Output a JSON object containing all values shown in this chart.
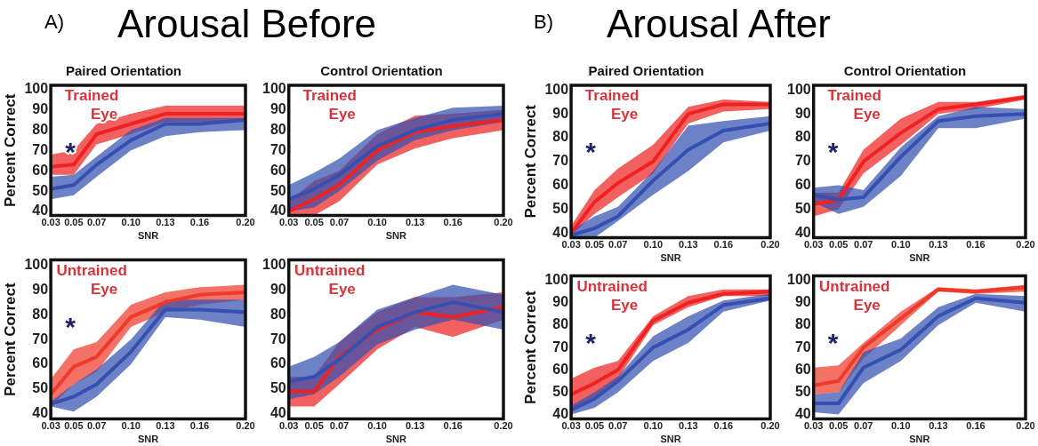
{
  "chart_data": [
    {
      "type": "line",
      "title": "Paired Orientation",
      "xlabel": "SNR",
      "ylabel": "Percent Correct",
      "annotations": [
        "A)",
        "Arousal Before",
        "Trained Eye",
        "*"
      ],
      "x": [
        0.03,
        0.05,
        0.07,
        0.1,
        0.13,
        0.16,
        0.2
      ],
      "xlim": [
        0.03,
        0.2
      ],
      "xticks": [
        {
          "value": 0.03,
          "label": "0.03"
        },
        {
          "value": 0.05,
          "label": "0.05"
        },
        {
          "value": 0.07,
          "label": "0.07"
        },
        {
          "value": 0.1,
          "label": "0.10"
        },
        {
          "value": 0.13,
          "label": "0.13"
        },
        {
          "value": 0.16,
          "label": "0.16"
        },
        {
          "value": 0.2,
          "label": "0.20"
        }
      ],
      "ylim": [
        38,
        102
      ],
      "yticks": [
        40,
        50,
        60,
        70,
        80,
        90,
        100
      ],
      "series": [
        {
          "color": "#3550b0",
          "values": [
            51,
            53,
            63,
            75,
            83,
            83,
            85
          ],
          "lower": [
            46,
            48,
            57,
            70,
            77,
            79,
            80
          ],
          "upper": [
            57,
            58,
            67,
            80,
            86,
            86,
            86
          ]
        },
        {
          "color": "#ee2222",
          "values": [
            62,
            63,
            78,
            83,
            88,
            88,
            88
          ],
          "lower": [
            58,
            58,
            73,
            78,
            84,
            84,
            84
          ],
          "upper": [
            68,
            70,
            83,
            88,
            92,
            92,
            92
          ]
        }
      ]
    },
    {
      "type": "line",
      "title": "Control Orientation",
      "xlabel": "SNR",
      "annotations": [
        "Trained Eye"
      ],
      "x": [
        0.03,
        0.05,
        0.07,
        0.1,
        0.13,
        0.16,
        0.2
      ],
      "xlim": [
        0.03,
        0.2
      ],
      "xticks": [
        {
          "value": 0.03,
          "label": "0.03"
        },
        {
          "value": 0.05,
          "label": "0.05"
        },
        {
          "value": 0.07,
          "label": "0.07"
        },
        {
          "value": 0.1,
          "label": "0.10"
        },
        {
          "value": 0.13,
          "label": "0.13"
        },
        {
          "value": 0.16,
          "label": "0.16"
        },
        {
          "value": 0.2,
          "label": "0.20"
        }
      ],
      "ylim": [
        38,
        102
      ],
      "yticks": [
        40,
        50,
        60,
        70,
        80,
        90,
        100
      ],
      "series": [
        {
          "color": "#3550b0",
          "values": [
            46,
            51,
            58,
            72,
            80,
            85,
            88
          ],
          "lower": [
            40,
            42,
            50,
            65,
            75,
            80,
            84
          ],
          "upper": [
            53,
            59,
            66,
            80,
            86,
            91,
            92
          ]
        },
        {
          "color": "#ee2222",
          "values": [
            40,
            46,
            53,
            70,
            79,
            82,
            85
          ],
          "lower": [
            38,
            38,
            45,
            63,
            71,
            76,
            80
          ],
          "upper": [
            45,
            55,
            60,
            78,
            87,
            88,
            90
          ]
        }
      ]
    },
    {
      "type": "line",
      "xlabel": "SNR",
      "ylabel": "Percent Correct",
      "annotations": [
        "Untrained Eye",
        "*"
      ],
      "x": [
        0.03,
        0.05,
        0.07,
        0.1,
        0.13,
        0.16,
        0.2
      ],
      "xlim": [
        0.03,
        0.2
      ],
      "xticks": [
        {
          "value": 0.03,
          "label": "0.03"
        },
        {
          "value": 0.05,
          "label": "0.05"
        },
        {
          "value": 0.07,
          "label": "0.07"
        },
        {
          "value": 0.1,
          "label": "0.10"
        },
        {
          "value": 0.13,
          "label": "0.13"
        },
        {
          "value": 0.16,
          "label": "0.16"
        },
        {
          "value": 0.2,
          "label": "0.20"
        }
      ],
      "ylim": [
        38,
        102
      ],
      "yticks": [
        40,
        50,
        60,
        70,
        80,
        90,
        100
      ],
      "series": [
        {
          "color": "#3550b0",
          "values": [
            44,
            47,
            52,
            65,
            82,
            82,
            81
          ],
          "lower": [
            43,
            41,
            47,
            60,
            79,
            78,
            75
          ],
          "upper": [
            45,
            52,
            58,
            70,
            86,
            86,
            86
          ]
        },
        {
          "color": "#ee3a2a",
          "values": [
            48,
            59,
            63,
            79,
            85,
            88,
            89
          ],
          "lower": [
            43,
            52,
            57,
            75,
            81,
            84,
            86
          ],
          "upper": [
            54,
            66,
            69,
            84,
            89,
            91,
            92
          ]
        }
      ]
    },
    {
      "type": "line",
      "xlabel": "SNR",
      "annotations": [
        "Untrained Eye"
      ],
      "x": [
        0.03,
        0.05,
        0.07,
        0.1,
        0.13,
        0.16,
        0.2
      ],
      "xlim": [
        0.03,
        0.2
      ],
      "xticks": [
        {
          "value": 0.03,
          "label": "0.03"
        },
        {
          "value": 0.05,
          "label": "0.05"
        },
        {
          "value": 0.07,
          "label": "0.07"
        },
        {
          "value": 0.1,
          "label": "0.10"
        },
        {
          "value": 0.13,
          "label": "0.13"
        },
        {
          "value": 0.16,
          "label": "0.16"
        },
        {
          "value": 0.2,
          "label": "0.20"
        }
      ],
      "ylim": [
        38,
        102
      ],
      "yticks": [
        40,
        50,
        60,
        70,
        80,
        90,
        100
      ],
      "series": [
        {
          "color": "#3550b0",
          "values": [
            53,
            55,
            62,
            75,
            81,
            85,
            81
          ],
          "lower": [
            46,
            48,
            55,
            68,
            74,
            78,
            74
          ],
          "upper": [
            59,
            63,
            69,
            82,
            87,
            92,
            88
          ]
        },
        {
          "color": "#ee2222",
          "values": [
            49,
            49,
            63,
            74,
            81,
            79,
            83
          ],
          "lower": [
            43,
            43,
            52,
            66,
            75,
            71,
            78
          ],
          "upper": [
            55,
            55,
            69,
            81,
            87,
            87,
            89
          ]
        }
      ]
    },
    {
      "type": "line",
      "title": "Paired Orientation",
      "xlabel": "SNR",
      "ylabel": "Percent Correct",
      "annotations": [
        "B)",
        "Arousal After",
        "Trained Eye",
        "*"
      ],
      "x": [
        0.03,
        0.05,
        0.07,
        0.1,
        0.13,
        0.16,
        0.2
      ],
      "xlim": [
        0.03,
        0.2
      ],
      "xticks": [
        {
          "value": 0.03,
          "label": "0.03"
        },
        {
          "value": 0.05,
          "label": "0.05"
        },
        {
          "value": 0.07,
          "label": "0.07"
        },
        {
          "value": 0.1,
          "label": "0.10"
        },
        {
          "value": 0.13,
          "label": "0.13"
        },
        {
          "value": 0.16,
          "label": "0.16"
        },
        {
          "value": 0.2,
          "label": "0.20"
        }
      ],
      "ylim": [
        38,
        102
      ],
      "yticks": [
        40,
        50,
        60,
        70,
        80,
        90,
        100
      ],
      "series": [
        {
          "color": "#3550b0",
          "values": [
            39,
            42,
            47,
            62,
            75,
            83,
            86
          ],
          "lower": [
            38,
            38,
            45,
            56,
            66,
            78,
            83
          ],
          "upper": [
            41,
            47,
            51,
            66,
            85,
            87,
            89
          ]
        },
        {
          "color": "#ee2222",
          "values": [
            40,
            53,
            61,
            70,
            90,
            94,
            94
          ],
          "lower": [
            39,
            48,
            55,
            65,
            86,
            91,
            92
          ],
          "upper": [
            43,
            58,
            67,
            77,
            93,
            96,
            95
          ]
        }
      ]
    },
    {
      "type": "line",
      "title": "Control Orientation",
      "xlabel": "SNR",
      "annotations": [
        "Trained Eye",
        "*"
      ],
      "x": [
        0.03,
        0.05,
        0.07,
        0.1,
        0.13,
        0.16,
        0.2
      ],
      "xlim": [
        0.03,
        0.2
      ],
      "xticks": [
        {
          "value": 0.03,
          "label": "0.03"
        },
        {
          "value": 0.05,
          "label": "0.05"
        },
        {
          "value": 0.07,
          "label": "0.07"
        },
        {
          "value": 0.1,
          "label": "0.10"
        },
        {
          "value": 0.13,
          "label": "0.13"
        },
        {
          "value": 0.16,
          "label": "0.16"
        },
        {
          "value": 0.2,
          "label": "0.20"
        }
      ],
      "ylim": [
        38,
        102
      ],
      "yticks": [
        40,
        50,
        60,
        70,
        80,
        90,
        100
      ],
      "series": [
        {
          "color": "#3550b0",
          "values": [
            56,
            54,
            55,
            72,
            87,
            89,
            90
          ],
          "lower": [
            53,
            48,
            51,
            64,
            84,
            84,
            88
          ],
          "upper": [
            59,
            60,
            58,
            76,
            89,
            93,
            92
          ]
        },
        {
          "color": "#ee2222",
          "values": [
            52,
            54,
            70,
            82,
            92,
            94,
            97
          ],
          "lower": [
            47,
            50,
            65,
            77,
            90,
            92,
            96
          ],
          "upper": [
            57,
            57,
            75,
            88,
            95,
            95,
            98
          ]
        }
      ]
    },
    {
      "type": "line",
      "xlabel": "SNR",
      "ylabel": "Percent Correct",
      "annotations": [
        "Untrained Eye",
        "*"
      ],
      "x": [
        0.03,
        0.05,
        0.07,
        0.1,
        0.13,
        0.16,
        0.2
      ],
      "xlim": [
        0.03,
        0.2
      ],
      "xticks": [
        {
          "value": 0.03,
          "label": "0.03"
        },
        {
          "value": 0.05,
          "label": "0.05"
        },
        {
          "value": 0.07,
          "label": "0.07"
        },
        {
          "value": 0.1,
          "label": "0.10"
        },
        {
          "value": 0.13,
          "label": "0.13"
        },
        {
          "value": 0.16,
          "label": "0.16"
        },
        {
          "value": 0.2,
          "label": "0.20"
        }
      ],
      "ylim": [
        38,
        102
      ],
      "yticks": [
        40,
        50,
        60,
        70,
        80,
        90,
        100
      ],
      "series": [
        {
          "color": "#3550b0",
          "values": [
            42,
            47,
            55,
            70,
            78,
            89,
            92
          ],
          "lower": [
            40,
            43,
            50,
            64,
            72,
            86,
            91
          ],
          "upper": [
            44,
            50,
            57,
            75,
            84,
            91,
            94
          ]
        },
        {
          "color": "#ee2222",
          "values": [
            49,
            54,
            60,
            82,
            90,
            94,
            95
          ],
          "lower": [
            42,
            48,
            56,
            80,
            88,
            93,
            93
          ],
          "upper": [
            56,
            61,
            64,
            84,
            93,
            96,
            96
          ]
        }
      ]
    },
    {
      "type": "line",
      "xlabel": "SNR",
      "annotations": [
        "Untrained Eye",
        "*"
      ],
      "x": [
        0.03,
        0.05,
        0.07,
        0.1,
        0.13,
        0.16,
        0.2
      ],
      "xlim": [
        0.03,
        0.2
      ],
      "xticks": [
        {
          "value": 0.03,
          "label": "0.03"
        },
        {
          "value": 0.05,
          "label": "0.05"
        },
        {
          "value": 0.07,
          "label": "0.07"
        },
        {
          "value": 0.1,
          "label": "0.10"
        },
        {
          "value": 0.13,
          "label": "0.13"
        },
        {
          "value": 0.16,
          "label": "0.16"
        },
        {
          "value": 0.2,
          "label": "0.20"
        }
      ],
      "ylim": [
        38,
        102
      ],
      "yticks": [
        40,
        50,
        60,
        70,
        80,
        90,
        100
      ],
      "series": [
        {
          "color": "#3550b0",
          "values": [
            45,
            45,
            61,
            69,
            84,
            92,
            90
          ],
          "lower": [
            41,
            40,
            54,
            64,
            80,
            90,
            86
          ],
          "upper": [
            49,
            50,
            68,
            74,
            88,
            94,
            93
          ]
        },
        {
          "color": "#ee3a2a",
          "values": [
            53,
            55,
            70,
            83,
            96,
            95,
            97
          ],
          "lower": [
            49,
            50,
            65,
            80,
            95,
            94,
            95
          ],
          "upper": [
            61,
            62,
            72,
            86,
            97,
            96,
            98
          ]
        }
      ]
    }
  ]
}
